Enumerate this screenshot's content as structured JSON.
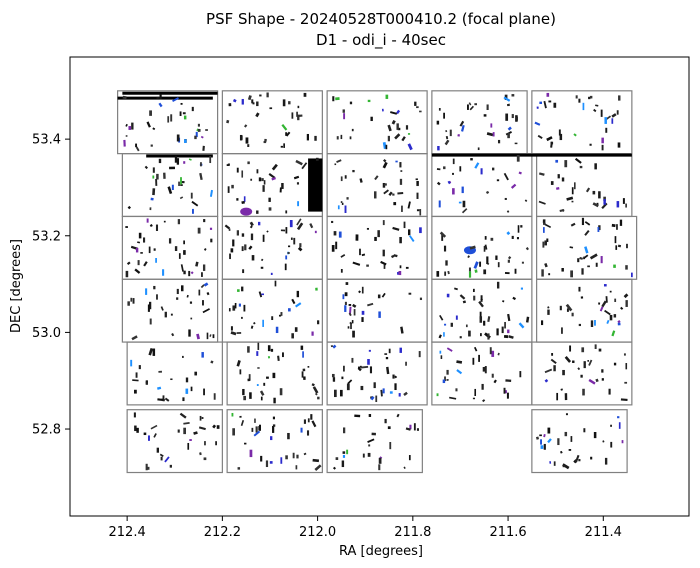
{
  "chart_data": {
    "type": "scatter",
    "title": "PSF Shape - 20240528T000410.2 (focal plane)",
    "subtitle": "D1 - odi_i - 40sec",
    "xlabel": "RA [degrees]",
    "ylabel": "DEC [degrees]",
    "xlim": [
      212.52,
      211.22
    ],
    "ylim": [
      52.62,
      53.57
    ],
    "x_ticks": [
      212.4,
      212.2,
      212.0,
      211.8,
      211.6,
      211.4
    ],
    "x_tick_labels": [
      "212.4",
      "212.2",
      "212.0",
      "211.8",
      "211.6",
      "211.4"
    ],
    "y_ticks": [
      52.8,
      53.0,
      53.2,
      53.4
    ],
    "y_tick_labels": [
      "52.8",
      "53.0",
      "53.2",
      "53.4"
    ],
    "grid": false,
    "frame_color": "#808080",
    "point_colors": [
      "#111111",
      "#222222",
      "#333333",
      "#1a1a1a",
      "#2b2bcc",
      "#1f4fd8",
      "#7a2aa8",
      "#33b533",
      "#1e90ff"
    ],
    "chips": [
      {
        "ra_min": 212.42,
        "ra_max": 212.21,
        "dec_min": 53.37,
        "dec_max": 53.5
      },
      {
        "ra_min": 212.2,
        "ra_max": 211.99,
        "dec_min": 53.37,
        "dec_max": 53.5
      },
      {
        "ra_min": 211.98,
        "ra_max": 211.77,
        "dec_min": 53.37,
        "dec_max": 53.5
      },
      {
        "ra_min": 211.76,
        "ra_max": 211.56,
        "dec_min": 53.37,
        "dec_max": 53.5
      },
      {
        "ra_min": 211.55,
        "ra_max": 211.34,
        "dec_min": 53.37,
        "dec_max": 53.5
      },
      {
        "ra_min": 212.41,
        "ra_max": 212.21,
        "dec_min": 53.24,
        "dec_max": 53.37
      },
      {
        "ra_min": 212.2,
        "ra_max": 211.99,
        "dec_min": 53.24,
        "dec_max": 53.37
      },
      {
        "ra_min": 211.98,
        "ra_max": 211.77,
        "dec_min": 53.24,
        "dec_max": 53.37
      },
      {
        "ra_min": 211.76,
        "ra_max": 211.55,
        "dec_min": 53.24,
        "dec_max": 53.37
      },
      {
        "ra_min": 211.54,
        "ra_max": 211.34,
        "dec_min": 53.24,
        "dec_max": 53.37
      },
      {
        "ra_min": 212.41,
        "ra_max": 212.21,
        "dec_min": 53.11,
        "dec_max": 53.24
      },
      {
        "ra_min": 212.2,
        "ra_max": 211.99,
        "dec_min": 53.11,
        "dec_max": 53.24
      },
      {
        "ra_min": 211.98,
        "ra_max": 211.77,
        "dec_min": 53.11,
        "dec_max": 53.24
      },
      {
        "ra_min": 211.76,
        "ra_max": 211.55,
        "dec_min": 53.11,
        "dec_max": 53.24
      },
      {
        "ra_min": 211.54,
        "ra_max": 211.33,
        "dec_min": 53.11,
        "dec_max": 53.24
      },
      {
        "ra_min": 212.41,
        "ra_max": 212.21,
        "dec_min": 52.98,
        "dec_max": 53.11
      },
      {
        "ra_min": 212.2,
        "ra_max": 211.99,
        "dec_min": 52.98,
        "dec_max": 53.11
      },
      {
        "ra_min": 211.98,
        "ra_max": 211.77,
        "dec_min": 52.98,
        "dec_max": 53.11
      },
      {
        "ra_min": 211.76,
        "ra_max": 211.55,
        "dec_min": 52.98,
        "dec_max": 53.11
      },
      {
        "ra_min": 211.54,
        "ra_max": 211.34,
        "dec_min": 52.98,
        "dec_max": 53.11
      },
      {
        "ra_min": 212.4,
        "ra_max": 212.2,
        "dec_min": 52.85,
        "dec_max": 52.98
      },
      {
        "ra_min": 212.19,
        "ra_max": 211.99,
        "dec_min": 52.85,
        "dec_max": 52.98
      },
      {
        "ra_min": 211.98,
        "ra_max": 211.77,
        "dec_min": 52.85,
        "dec_max": 52.98
      },
      {
        "ra_min": 211.76,
        "ra_max": 211.55,
        "dec_min": 52.85,
        "dec_max": 52.98
      },
      {
        "ra_min": 211.55,
        "ra_max": 211.34,
        "dec_min": 52.85,
        "dec_max": 52.98
      },
      {
        "ra_min": 212.4,
        "ra_max": 212.2,
        "dec_min": 52.71,
        "dec_max": 52.84
      },
      {
        "ra_min": 212.19,
        "ra_max": 211.99,
        "dec_min": 52.71,
        "dec_max": 52.84
      },
      {
        "ra_min": 211.98,
        "ra_max": 211.78,
        "dec_min": 52.71,
        "dec_max": 52.84
      },
      {
        "ra_min": 211.55,
        "ra_max": 211.35,
        "dec_min": 52.71,
        "dec_max": 52.84
      }
    ],
    "features": [
      {
        "kind": "hline",
        "ra_min": 212.41,
        "ra_max": 212.21,
        "dec": 53.495
      },
      {
        "kind": "hline",
        "ra_min": 212.42,
        "ra_max": 212.22,
        "dec": 53.485
      },
      {
        "kind": "hline",
        "ra_min": 211.76,
        "ra_max": 211.34,
        "dec": 53.367
      },
      {
        "kind": "hline",
        "ra_min": 212.36,
        "ra_max": 212.22,
        "dec": 53.365
      },
      {
        "kind": "block",
        "ra_min": 212.02,
        "ra_max": 211.99,
        "dec_min": 53.25,
        "dec_max": 53.36
      },
      {
        "kind": "blob",
        "ra": 212.15,
        "dec": 53.25,
        "color": "#7a2aa8"
      },
      {
        "kind": "blob",
        "ra": 211.68,
        "dec": 53.17,
        "color": "#1f4fd8"
      }
    ]
  }
}
